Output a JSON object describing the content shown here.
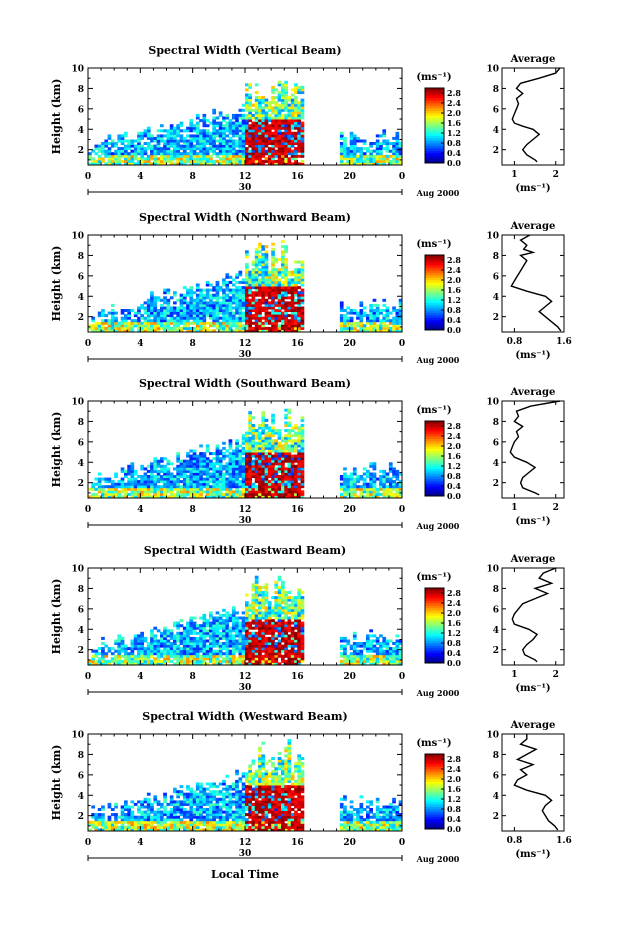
{
  "figure": {
    "xlabel_bottom": "Local Time",
    "date_label": "Aug 2000",
    "day_label": "30",
    "colorbar_unit": "(ms⁻¹)",
    "ylabel": "Height (km)",
    "average_title": "Average",
    "average_unit": "(ms⁻¹)"
  },
  "chart_data": [
    {
      "type": "heatmap",
      "title": "Spectral Width (Vertical Beam)",
      "xlabel": "",
      "ylabel": "Height (km)",
      "xlim": [
        0,
        24
      ],
      "ylim": [
        0.5,
        10
      ],
      "x_ticks": [
        "0",
        "4",
        "8",
        "12",
        "16",
        "20",
        "0"
      ],
      "y_ticks": [
        "2",
        "4",
        "6",
        "8",
        "10"
      ],
      "colorbar_ticks": [
        "0.0",
        "0.4",
        "0.8",
        "1.2",
        "1.6",
        "2.0",
        "2.4",
        "2.8"
      ],
      "colorbar_range": [
        0,
        3.0
      ],
      "intensity": [
        0.25,
        0.2,
        0.25,
        0.2,
        0.2
      ],
      "average_profile": {
        "title": "Average",
        "xlabel": "(ms⁻¹)",
        "xlim": [
          0.7,
          2.2
        ],
        "x_ticks": [
          "1",
          "2"
        ],
        "ylim": [
          0.5,
          10
        ],
        "y_ticks": [
          "2",
          "4",
          "6",
          "8",
          "10"
        ],
        "height": [
          0.8,
          1.0,
          1.5,
          2.0,
          2.5,
          3.0,
          3.5,
          4.0,
          4.3,
          4.6,
          5.0,
          5.5,
          6.0,
          6.5,
          7.0,
          7.5,
          8.0,
          8.5,
          9.0,
          9.5,
          10.0
        ],
        "width": [
          1.55,
          1.5,
          1.3,
          1.2,
          1.3,
          1.45,
          1.6,
          1.45,
          1.2,
          1.0,
          0.95,
          1.0,
          1.05,
          1.1,
          1.05,
          1.2,
          1.05,
          1.15,
          1.6,
          2.0,
          2.1
        ]
      }
    },
    {
      "type": "heatmap",
      "title": "Spectral Width (Northward Beam)",
      "xlabel": "",
      "ylabel": "Height (km)",
      "xlim": [
        0,
        24
      ],
      "ylim": [
        0.5,
        10
      ],
      "x_ticks": [
        "0",
        "4",
        "8",
        "12",
        "16",
        "20",
        "0"
      ],
      "y_ticks": [
        "2",
        "4",
        "6",
        "8",
        "10"
      ],
      "colorbar_ticks": [
        "0.0",
        "0.4",
        "0.8",
        "1.2",
        "1.6",
        "2.0",
        "2.4",
        "2.8"
      ],
      "colorbar_range": [
        0,
        3.0
      ],
      "average_profile": {
        "title": "Average",
        "xlabel": "(ms⁻¹)",
        "xlim": [
          0.6,
          1.6
        ],
        "x_ticks": [
          "0.8",
          "1.6"
        ],
        "ylim": [
          0.5,
          10
        ],
        "y_ticks": [
          "2",
          "4",
          "6",
          "8",
          "10"
        ],
        "height": [
          0.6,
          1.0,
          1.5,
          2.0,
          2.5,
          3.0,
          3.5,
          4.0,
          4.5,
          5.0,
          5.5,
          6.0,
          6.5,
          7.0,
          7.5,
          8.0,
          8.3,
          8.6,
          9.0,
          9.5,
          10.0
        ],
        "width": [
          1.55,
          1.5,
          1.4,
          1.3,
          1.2,
          1.3,
          1.4,
          1.3,
          1.0,
          0.75,
          0.8,
          0.85,
          0.9,
          0.95,
          1.0,
          0.9,
          1.1,
          0.95,
          1.0,
          0.9,
          1.05
        ]
      }
    },
    {
      "type": "heatmap",
      "title": "Spectral Width (Southward Beam)",
      "xlabel": "",
      "ylabel": "Height (km)",
      "xlim": [
        0,
        24
      ],
      "ylim": [
        0.5,
        10
      ],
      "x_ticks": [
        "0",
        "4",
        "8",
        "12",
        "16",
        "20",
        "0"
      ],
      "y_ticks": [
        "2",
        "4",
        "6",
        "8",
        "10"
      ],
      "colorbar_ticks": [
        "0.0",
        "0.4",
        "0.8",
        "1.2",
        "1.6",
        "2.0",
        "2.4",
        "2.8"
      ],
      "colorbar_range": [
        0,
        3.0
      ],
      "average_profile": {
        "title": "Average",
        "xlabel": "(ms⁻¹)",
        "xlim": [
          0.7,
          2.2
        ],
        "x_ticks": [
          "1",
          "2"
        ],
        "ylim": [
          0.5,
          10
        ],
        "y_ticks": [
          "2",
          "4",
          "6",
          "8",
          "10"
        ],
        "height": [
          0.8,
          1.0,
          1.5,
          2.0,
          2.5,
          3.0,
          3.5,
          4.0,
          4.5,
          5.0,
          5.5,
          6.0,
          6.5,
          7.0,
          7.5,
          8.0,
          8.5,
          9.0,
          9.5,
          10.0
        ],
        "width": [
          1.6,
          1.5,
          1.2,
          1.15,
          1.2,
          1.35,
          1.5,
          1.3,
          1.0,
          0.9,
          0.95,
          1.0,
          1.1,
          1.05,
          1.2,
          1.0,
          1.1,
          1.05,
          1.4,
          2.1
        ]
      }
    },
    {
      "type": "heatmap",
      "title": "Spectral Width (Eastward Beam)",
      "xlabel": "",
      "ylabel": "Height (km)",
      "xlim": [
        0,
        24
      ],
      "ylim": [
        0.5,
        10
      ],
      "x_ticks": [
        "0",
        "4",
        "8",
        "12",
        "16",
        "20",
        "0"
      ],
      "y_ticks": [
        "2",
        "4",
        "6",
        "8",
        "10"
      ],
      "colorbar_ticks": [
        "0.0",
        "0.4",
        "0.8",
        "1.2",
        "1.6",
        "2.0",
        "2.4",
        "2.8"
      ],
      "colorbar_range": [
        0,
        3.0
      ],
      "average_profile": {
        "title": "Average",
        "xlabel": "(ms⁻¹)",
        "xlim": [
          0.7,
          2.2
        ],
        "x_ticks": [
          "1",
          "2"
        ],
        "ylim": [
          0.5,
          10
        ],
        "y_ticks": [
          "2",
          "4",
          "6",
          "8",
          "10"
        ],
        "height": [
          0.8,
          1.0,
          1.5,
          2.0,
          2.5,
          3.0,
          3.5,
          4.0,
          4.5,
          5.0,
          5.5,
          6.0,
          6.5,
          7.0,
          7.5,
          8.0,
          8.5,
          9.0,
          9.5,
          10.0
        ],
        "width": [
          1.55,
          1.5,
          1.25,
          1.2,
          1.3,
          1.45,
          1.55,
          1.35,
          1.0,
          0.95,
          1.0,
          1.1,
          1.2,
          1.5,
          1.8,
          1.5,
          1.9,
          1.6,
          1.7,
          2.0
        ]
      }
    },
    {
      "type": "heatmap",
      "title": "Spectral Width (Westward Beam)",
      "xlabel": "Local Time",
      "ylabel": "Height (km)",
      "xlim": [
        0,
        24
      ],
      "ylim": [
        0.5,
        10
      ],
      "x_ticks": [
        "0",
        "4",
        "8",
        "12",
        "16",
        "20",
        "0"
      ],
      "y_ticks": [
        "2",
        "4",
        "6",
        "8",
        "10"
      ],
      "colorbar_ticks": [
        "0.0",
        "0.4",
        "0.8",
        "1.2",
        "1.6",
        "2.0",
        "2.4",
        "2.8"
      ],
      "colorbar_range": [
        0,
        3.0
      ],
      "average_profile": {
        "title": "Average",
        "xlabel": "(ms⁻¹)",
        "xlim": [
          0.6,
          1.6
        ],
        "x_ticks": [
          "0.8",
          "1.6"
        ],
        "ylim": [
          0.5,
          10
        ],
        "y_ticks": [
          "2",
          "4",
          "6",
          "8",
          "10"
        ],
        "height": [
          0.6,
          1.0,
          1.5,
          2.0,
          2.5,
          3.0,
          3.5,
          4.0,
          4.5,
          5.0,
          5.5,
          6.0,
          6.5,
          7.0,
          7.5,
          8.0,
          8.5,
          9.0,
          9.5,
          10.0
        ],
        "width": [
          1.5,
          1.45,
          1.35,
          1.3,
          1.25,
          1.3,
          1.4,
          1.3,
          1.0,
          0.8,
          0.85,
          1.0,
          0.9,
          1.1,
          0.85,
          1.0,
          1.15,
          0.9,
          1.0,
          1.0
        ]
      }
    }
  ]
}
